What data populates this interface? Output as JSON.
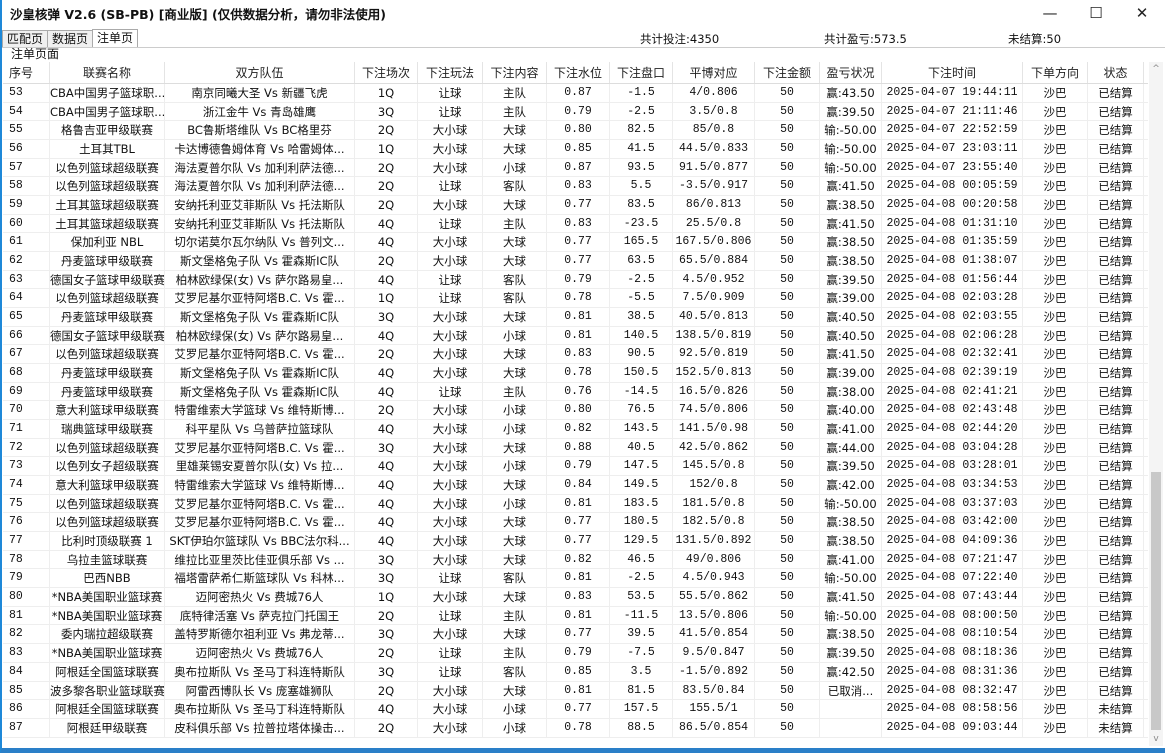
{
  "window": {
    "title": "沙皇核弹 V2.6  (SB-PB) [商业版] (仅供数据分析，请勿非法使用)",
    "minimize": "—",
    "maximize": "☐",
    "close": "✕"
  },
  "tabs": [
    {
      "label": "匹配页"
    },
    {
      "label": "数据页"
    },
    {
      "label": "注单页",
      "active": true
    }
  ],
  "stats": {
    "total_bets": "共计投注:4350",
    "total_pnl": "共计盈亏:573.5",
    "unsettled": "未结算:50"
  },
  "section_title": "注单页面",
  "columns": [
    "序号",
    "联赛名称",
    "双方队伍",
    "下注场次",
    "下注玩法",
    "下注内容",
    "下注水位",
    "下注盘口",
    "平博对应",
    "下注金额",
    "盈亏状况",
    "下注时间",
    "下单方向",
    "状态"
  ],
  "rows": [
    [
      "53",
      "CBA中国男子篮球职...",
      "南京同曦大圣 Vs 新疆飞虎",
      "1Q",
      "让球",
      "主队",
      "0.87",
      "-1.5",
      "4/0.806",
      "50",
      "赢:43.50",
      "2025-04-07 19:44:11",
      "沙巴",
      "已结算"
    ],
    [
      "54",
      "CBA中国男子篮球职...",
      "浙江金牛 Vs 青岛雄鹰",
      "3Q",
      "让球",
      "主队",
      "0.79",
      "-2.5",
      "3.5/0.8",
      "50",
      "赢:39.50",
      "2025-04-07 21:11:46",
      "沙巴",
      "已结算"
    ],
    [
      "55",
      "格鲁吉亚甲级联赛",
      "BC鲁斯塔维队 Vs BC格里芬",
      "2Q",
      "大小球",
      "大球",
      "0.80",
      "82.5",
      "85/0.8",
      "50",
      "输:-50.00",
      "2025-04-07 22:52:59",
      "沙巴",
      "已结算"
    ],
    [
      "56",
      "土耳其TBL",
      "卡达博德鲁姆体育 Vs 哈雷姆体...",
      "1Q",
      "大小球",
      "大球",
      "0.85",
      "41.5",
      "44.5/0.833",
      "50",
      "输:-50.00",
      "2025-04-07 23:03:11",
      "沙巴",
      "已结算"
    ],
    [
      "57",
      "以色列篮球超级联赛",
      "海法夏普尔队 Vs 加利利萨法德...",
      "2Q",
      "大小球",
      "小球",
      "0.87",
      "93.5",
      "91.5/0.877",
      "50",
      "输:-50.00",
      "2025-04-07 23:55:40",
      "沙巴",
      "已结算"
    ],
    [
      "58",
      "以色列篮球超级联赛",
      "海法夏普尔队 Vs 加利利萨法德...",
      "2Q",
      "让球",
      "客队",
      "0.83",
      "5.5",
      "-3.5/0.917",
      "50",
      "赢:41.50",
      "2025-04-08 00:05:59",
      "沙巴",
      "已结算"
    ],
    [
      "59",
      "土耳其篮球超级联赛",
      "安纳托利亚艾菲斯队 Vs 托法斯队",
      "2Q",
      "大小球",
      "大球",
      "0.77",
      "83.5",
      "86/0.813",
      "50",
      "赢:38.50",
      "2025-04-08 00:20:58",
      "沙巴",
      "已结算"
    ],
    [
      "60",
      "土耳其篮球超级联赛",
      "安纳托利亚艾菲斯队 Vs 托法斯队",
      "4Q",
      "让球",
      "主队",
      "0.83",
      "-23.5",
      "25.5/0.8",
      "50",
      "赢:41.50",
      "2025-04-08 01:31:10",
      "沙巴",
      "已结算"
    ],
    [
      "61",
      "保加利亚 NBL",
      "切尔诺莫尔瓦尔纳队 Vs 普列文...",
      "4Q",
      "大小球",
      "大球",
      "0.77",
      "165.5",
      "167.5/0.806",
      "50",
      "赢:38.50",
      "2025-04-08 01:35:59",
      "沙巴",
      "已结算"
    ],
    [
      "62",
      "丹麦篮球甲级联赛",
      "斯文堡格兔子队 Vs 霍森斯IC队",
      "2Q",
      "大小球",
      "大球",
      "0.77",
      "63.5",
      "65.5/0.884",
      "50",
      "赢:38.50",
      "2025-04-08 01:38:07",
      "沙巴",
      "已结算"
    ],
    [
      "63",
      "德国女子篮球甲级联赛",
      "柏林欧绿保(女) Vs 萨尔路易皇...",
      "4Q",
      "让球",
      "客队",
      "0.79",
      "-2.5",
      "4.5/0.952",
      "50",
      "赢:39.50",
      "2025-04-08 01:56:44",
      "沙巴",
      "已结算"
    ],
    [
      "64",
      "以色列篮球超级联赛",
      "艾罗尼基尔亚特阿塔B.C. Vs 霍...",
      "1Q",
      "让球",
      "客队",
      "0.78",
      "-5.5",
      "7.5/0.909",
      "50",
      "赢:39.00",
      "2025-04-08 02:03:28",
      "沙巴",
      "已结算"
    ],
    [
      "65",
      "丹麦篮球甲级联赛",
      "斯文堡格兔子队 Vs 霍森斯IC队",
      "3Q",
      "大小球",
      "大球",
      "0.81",
      "38.5",
      "40.5/0.813",
      "50",
      "赢:40.50",
      "2025-04-08 02:03:55",
      "沙巴",
      "已结算"
    ],
    [
      "66",
      "德国女子篮球甲级联赛",
      "柏林欧绿保(女) Vs 萨尔路易皇...",
      "4Q",
      "大小球",
      "小球",
      "0.81",
      "140.5",
      "138.5/0.819",
      "50",
      "赢:40.50",
      "2025-04-08 02:06:28",
      "沙巴",
      "已结算"
    ],
    [
      "67",
      "以色列篮球超级联赛",
      "艾罗尼基尔亚特阿塔B.C. Vs 霍...",
      "2Q",
      "大小球",
      "大球",
      "0.83",
      "90.5",
      "92.5/0.819",
      "50",
      "赢:41.50",
      "2025-04-08 02:32:41",
      "沙巴",
      "已结算"
    ],
    [
      "68",
      "丹麦篮球甲级联赛",
      "斯文堡格兔子队 Vs 霍森斯IC队",
      "4Q",
      "大小球",
      "大球",
      "0.78",
      "150.5",
      "152.5/0.813",
      "50",
      "赢:39.00",
      "2025-04-08 02:39:19",
      "沙巴",
      "已结算"
    ],
    [
      "69",
      "丹麦篮球甲级联赛",
      "斯文堡格兔子队 Vs 霍森斯IC队",
      "4Q",
      "让球",
      "主队",
      "0.76",
      "-14.5",
      "16.5/0.826",
      "50",
      "赢:38.00",
      "2025-04-08 02:41:21",
      "沙巴",
      "已结算"
    ],
    [
      "70",
      "意大利篮球甲级联赛",
      "特雷维索大学篮球 Vs 维特斯博...",
      "2Q",
      "大小球",
      "小球",
      "0.80",
      "76.5",
      "74.5/0.806",
      "50",
      "赢:40.00",
      "2025-04-08 02:43:48",
      "沙巴",
      "已结算"
    ],
    [
      "71",
      "瑞典篮球甲级联赛",
      "科平星队 Vs 乌普萨拉篮球队",
      "4Q",
      "大小球",
      "小球",
      "0.82",
      "143.5",
      "141.5/0.98",
      "50",
      "赢:41.00",
      "2025-04-08 02:44:20",
      "沙巴",
      "已结算"
    ],
    [
      "72",
      "以色列篮球超级联赛",
      "艾罗尼基尔亚特阿塔B.C. Vs 霍...",
      "3Q",
      "大小球",
      "大球",
      "0.88",
      "40.5",
      "42.5/0.862",
      "50",
      "赢:44.00",
      "2025-04-08 03:04:28",
      "沙巴",
      "已结算"
    ],
    [
      "73",
      "以色列女子超级联赛",
      "里雄莱锡安夏普尔队(女) Vs 拉...",
      "4Q",
      "大小球",
      "小球",
      "0.79",
      "147.5",
      "145.5/0.8",
      "50",
      "赢:39.50",
      "2025-04-08 03:28:01",
      "沙巴",
      "已结算"
    ],
    [
      "74",
      "意大利篮球甲级联赛",
      "特雷维索大学篮球 Vs 维特斯博...",
      "4Q",
      "大小球",
      "大球",
      "0.84",
      "149.5",
      "152/0.8",
      "50",
      "赢:42.00",
      "2025-04-08 03:34:53",
      "沙巴",
      "已结算"
    ],
    [
      "75",
      "以色列篮球超级联赛",
      "艾罗尼基尔亚特阿塔B.C. Vs 霍...",
      "4Q",
      "大小球",
      "小球",
      "0.81",
      "183.5",
      "181.5/0.8",
      "50",
      "输:-50.00",
      "2025-04-08 03:37:03",
      "沙巴",
      "已结算"
    ],
    [
      "76",
      "以色列篮球超级联赛",
      "艾罗尼基尔亚特阿塔B.C. Vs 霍...",
      "4Q",
      "大小球",
      "大球",
      "0.77",
      "180.5",
      "182.5/0.8",
      "50",
      "赢:38.50",
      "2025-04-08 03:42:00",
      "沙巴",
      "已结算"
    ],
    [
      "77",
      "比利时顶级联赛 1",
      "SKT伊珀尔篮球队 Vs BBC法尔科...",
      "4Q",
      "大小球",
      "大球",
      "0.77",
      "129.5",
      "131.5/0.892",
      "50",
      "赢:38.50",
      "2025-04-08 04:09:36",
      "沙巴",
      "已结算"
    ],
    [
      "78",
      "乌拉圭篮球联赛",
      "维拉比亚里茨比佳亚俱乐部 Vs ...",
      "3Q",
      "大小球",
      "大球",
      "0.82",
      "46.5",
      "49/0.806",
      "50",
      "赢:41.00",
      "2025-04-08 07:21:47",
      "沙巴",
      "已结算"
    ],
    [
      "79",
      "巴西NBB",
      "福塔雷萨希仁斯篮球队 Vs 科林...",
      "3Q",
      "让球",
      "客队",
      "0.81",
      "-2.5",
      "4.5/0.943",
      "50",
      "输:-50.00",
      "2025-04-08 07:22:40",
      "沙巴",
      "已结算"
    ],
    [
      "80",
      "*NBA美国职业篮球赛",
      "迈阿密热火 Vs 费城76人",
      "1Q",
      "大小球",
      "大球",
      "0.83",
      "53.5",
      "55.5/0.862",
      "50",
      "赢:41.50",
      "2025-04-08 07:43:44",
      "沙巴",
      "已结算"
    ],
    [
      "81",
      "*NBA美国职业篮球赛",
      "底特律活塞 Vs 萨克拉门托国王",
      "2Q",
      "让球",
      "主队",
      "0.81",
      "-11.5",
      "13.5/0.806",
      "50",
      "输:-50.00",
      "2025-04-08 08:00:50",
      "沙巴",
      "已结算"
    ],
    [
      "82",
      "委内瑞拉超级联赛",
      "盖特罗斯德尔祖利亚 Vs 弗龙蒂...",
      "3Q",
      "大小球",
      "大球",
      "0.77",
      "39.5",
      "41.5/0.854",
      "50",
      "赢:38.50",
      "2025-04-08 08:10:54",
      "沙巴",
      "已结算"
    ],
    [
      "83",
      "*NBA美国职业篮球赛",
      "迈阿密热火 Vs 费城76人",
      "2Q",
      "让球",
      "主队",
      "0.79",
      "-7.5",
      "9.5/0.847",
      "50",
      "赢:39.50",
      "2025-04-08 08:18:36",
      "沙巴",
      "已结算"
    ],
    [
      "84",
      "阿根廷全国篮球联赛",
      "奥布拉斯队 Vs 圣马丁科连特斯队",
      "3Q",
      "让球",
      "客队",
      "0.85",
      "3.5",
      "-1.5/0.892",
      "50",
      "赢:42.50",
      "2025-04-08 08:31:36",
      "沙巴",
      "已结算"
    ],
    [
      "85",
      "波多黎各职业篮球联赛",
      "阿雷西博队长 Vs 庞塞雄狮队",
      "2Q",
      "大小球",
      "大球",
      "0.81",
      "81.5",
      "83.5/0.84",
      "50",
      "已取消...",
      "2025-04-08 08:32:47",
      "沙巴",
      "已结算"
    ],
    [
      "86",
      "阿根廷全国篮球联赛",
      "奥布拉斯队 Vs 圣马丁科连特斯队",
      "4Q",
      "大小球",
      "小球",
      "0.77",
      "157.5",
      "155.5/1",
      "50",
      "",
      "2025-04-08 08:58:56",
      "沙巴",
      "未结算"
    ],
    [
      "87",
      "阿根廷甲级联赛",
      "皮科俱乐部 Vs 拉普拉塔体操击...",
      "2Q",
      "大小球",
      "小球",
      "0.78",
      "88.5",
      "86.5/0.854",
      "50",
      "",
      "2025-04-08 09:03:44",
      "沙巴",
      "未结算"
    ]
  ],
  "colors": {
    "window_border": "#1e88d8",
    "scroll_thumb": "#c8c8c8"
  },
  "scroll": {
    "up": "^",
    "down": "v"
  }
}
